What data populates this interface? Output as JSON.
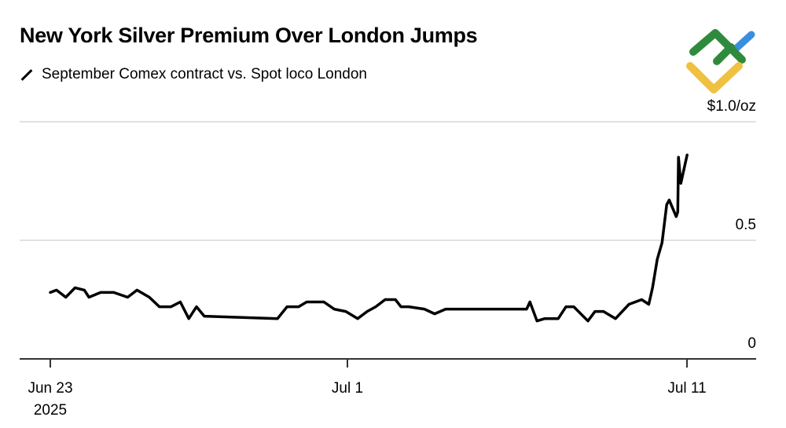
{
  "title": "New York Silver Premium Over London Jumps",
  "subtitle": "September Comex contract vs. Spot loco London",
  "colors": {
    "line": "#000000",
    "grid": "#d9d9d9",
    "axis": "#333333",
    "logo_green": "#2e8b3e",
    "logo_blue": "#3a8ee0",
    "logo_yellow": "#f0c040"
  },
  "chart_data": {
    "type": "line",
    "title": "New York Silver Premium Over London Jumps",
    "xlabel": "",
    "ylabel": "",
    "ylim": [
      0,
      1.0
    ],
    "yticks": [
      {
        "value": 0,
        "label": "0"
      },
      {
        "value": 0.5,
        "label": "0.5"
      },
      {
        "value": 1.0,
        "label": "$1.0/oz"
      }
    ],
    "xticks": [
      {
        "date": "2025-06-23T00:00",
        "label": "Jun 23",
        "sublabel": "2025"
      },
      {
        "date": "2025-07-01T00:00",
        "label": "Jul 1",
        "sublabel": ""
      },
      {
        "date": "2025-07-11T00:00",
        "label": "Jul 11",
        "sublabel": ""
      }
    ],
    "grid": true,
    "series": [
      {
        "name": "September Comex contract vs. Spot loco London",
        "points": [
          [
            "2025-06-23T00:00",
            0.28
          ],
          [
            "2025-06-23T04:00",
            0.29
          ],
          [
            "2025-06-23T10:00",
            0.26
          ],
          [
            "2025-06-23T16:00",
            0.3
          ],
          [
            "2025-06-23T22:00",
            0.29
          ],
          [
            "2025-06-24T01:00",
            0.26
          ],
          [
            "2025-06-24T08:30",
            0.28
          ],
          [
            "2025-06-24T17:00",
            0.28
          ],
          [
            "2025-06-25T02:00",
            0.26
          ],
          [
            "2025-06-25T08:00",
            0.29
          ],
          [
            "2025-06-25T16:00",
            0.26
          ],
          [
            "2025-06-25T22:30",
            0.22
          ],
          [
            "2025-06-26T06:00",
            0.22
          ],
          [
            "2025-06-26T12:00",
            0.24
          ],
          [
            "2025-06-26T17:30",
            0.17
          ],
          [
            "2025-06-26T22:30",
            0.22
          ],
          [
            "2025-06-27T03:30",
            0.18
          ],
          [
            "2025-06-29T02:50",
            0.17
          ],
          [
            "2025-06-29T09:00",
            0.22
          ],
          [
            "2025-06-29T16:30",
            0.22
          ],
          [
            "2025-06-29T21:40",
            0.24
          ],
          [
            "2025-06-30T08:50",
            0.24
          ],
          [
            "2025-06-30T15:25",
            0.21
          ],
          [
            "2025-06-30T23:00",
            0.2
          ],
          [
            "2025-07-01T07:15",
            0.17
          ],
          [
            "2025-07-01T13:55",
            0.2
          ],
          [
            "2025-07-01T20:00",
            0.22
          ],
          [
            "2025-07-02T02:40",
            0.25
          ],
          [
            "2025-07-02T09:55",
            0.25
          ],
          [
            "2025-07-02T13:50",
            0.22
          ],
          [
            "2025-07-02T19:20",
            0.22
          ],
          [
            "2025-07-03T06:25",
            0.21
          ],
          [
            "2025-07-03T13:40",
            0.19
          ],
          [
            "2025-07-03T21:25",
            0.21
          ],
          [
            "2025-07-06T06:40",
            0.21
          ],
          [
            "2025-07-06T09:00",
            0.24
          ],
          [
            "2025-07-06T14:00",
            0.16
          ],
          [
            "2025-07-06T19:30",
            0.17
          ],
          [
            "2025-07-07T05:00",
            0.17
          ],
          [
            "2025-07-07T10:30",
            0.22
          ],
          [
            "2025-07-07T16:00",
            0.22
          ],
          [
            "2025-07-08T02:00",
            0.16
          ],
          [
            "2025-07-08T07:00",
            0.2
          ],
          [
            "2025-07-08T13:00",
            0.2
          ],
          [
            "2025-07-08T21:30",
            0.17
          ],
          [
            "2025-07-09T07:00",
            0.23
          ],
          [
            "2025-07-09T16:00",
            0.25
          ],
          [
            "2025-07-09T21:00",
            0.23
          ],
          [
            "2025-07-09T23:40",
            0.3
          ],
          [
            "2025-07-10T03:00",
            0.42
          ],
          [
            "2025-07-10T06:25",
            0.49
          ],
          [
            "2025-07-10T09:40",
            0.65
          ],
          [
            "2025-07-10T11:25",
            0.67
          ],
          [
            "2025-07-10T16:25",
            0.6
          ],
          [
            "2025-07-10T17:30",
            0.62
          ],
          [
            "2025-07-10T18:00",
            0.85
          ],
          [
            "2025-07-10T19:40",
            0.74
          ],
          [
            "2025-07-11T00:05",
            0.86
          ]
        ]
      }
    ]
  }
}
